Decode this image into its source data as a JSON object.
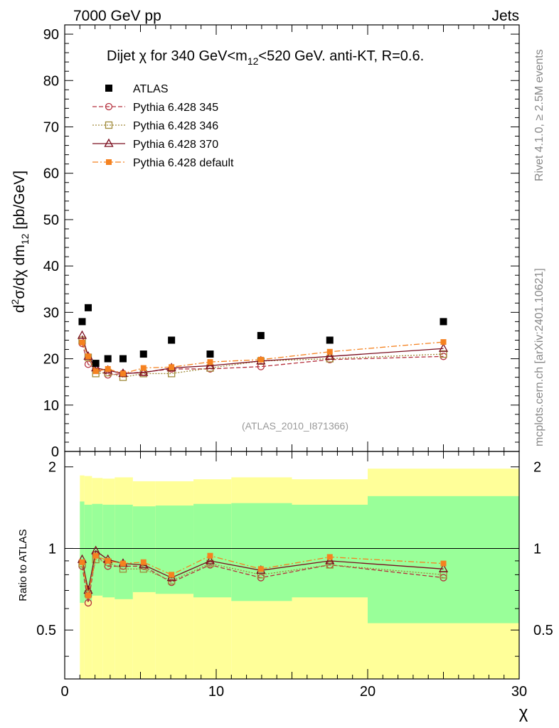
{
  "header": {
    "left": "7000 GeV pp",
    "right": "Jets"
  },
  "side_labels": {
    "rivet": "Rivet 4.1.0, ≥ 2.5M events",
    "mcplots": "mcplots.cern.ch [arXiv:2401.10621]"
  },
  "colors": {
    "atlas": "#000000",
    "p345": "#b5303d",
    "p346": "#a08a3a",
    "p370": "#7a0d1e",
    "pdefault": "#f58220",
    "band_yellow": "#ffff99",
    "band_green": "#99ff99"
  },
  "chart_data": [
    {
      "type": "scatter",
      "title_parts": {
        "prefix": "Dijet χ for 340 GeV<m",
        "sub": "12",
        "suffix": "<520 GeV.  anti-KT, R=0.6."
      },
      "ylabel_parts": {
        "d": "d",
        "sup": "2",
        "mid": "σ/dχ dm",
        "sub": "12",
        "unit": " [pb/GeV]"
      },
      "xlabel": "χ",
      "xlim": [
        0,
        30
      ],
      "ylim": [
        0,
        92
      ],
      "y_ticks": [
        0,
        10,
        20,
        30,
        40,
        50,
        60,
        70,
        80,
        90
      ],
      "analysis_id": "(ATLAS_2010_I871366)",
      "legend": [
        "ATLAS",
        "Pythia 6.428 345",
        "Pythia 6.428 346",
        "Pythia 6.428 370",
        "Pythia 6.428 default"
      ],
      "x": [
        1.15,
        1.55,
        2.05,
        2.85,
        3.85,
        5.2,
        7.05,
        9.6,
        12.95,
        17.5,
        25
      ],
      "series": [
        {
          "name": "ATLAS",
          "values": [
            28,
            31,
            19,
            20,
            20,
            21,
            24,
            21,
            25,
            24,
            28
          ]
        },
        {
          "name": "Pythia 6.428 345",
          "values": [
            23.3,
            18.8,
            17.8,
            16.5,
            16.8,
            17.1,
            17.8,
            17.8,
            18.3,
            19.8,
            20.5
          ]
        },
        {
          "name": "Pythia 6.428 346",
          "values": [
            24.0,
            20.3,
            16.8,
            17.0,
            16.0,
            16.8,
            16.8,
            18.0,
            19.5,
            20.0,
            21.0
          ]
        },
        {
          "name": "Pythia 6.428 370",
          "values": [
            25.0,
            20.5,
            18.0,
            17.5,
            16.8,
            17.0,
            18.0,
            18.5,
            19.5,
            20.5,
            22.2
          ]
        },
        {
          "name": "Pythia 6.428 default",
          "values": [
            23.5,
            20.5,
            17.3,
            17.8,
            16.8,
            18.0,
            18.2,
            19.3,
            19.8,
            21.5,
            23.6
          ]
        }
      ]
    },
    {
      "type": "line",
      "ylabel": "Ratio to ATLAS",
      "xlabel": "χ",
      "xlim": [
        0,
        30
      ],
      "ylim": [
        0.33,
        2.28
      ],
      "y_ticks": [
        0.5,
        1,
        2
      ],
      "x_ticks": [
        0,
        10,
        20,
        30
      ],
      "band_edges": [
        1.0,
        1.3,
        1.8,
        2.5,
        3.3,
        4.5,
        6.0,
        8.5,
        11.0,
        15.0,
        20.0,
        30.0
      ],
      "band_yellow_hi": [
        1.86,
        1.85,
        1.82,
        1.81,
        1.83,
        1.77,
        1.77,
        1.8,
        1.83,
        1.8,
        1.97
      ],
      "band_yellow_lo": [
        0.33,
        0.33,
        0.33,
        0.33,
        0.33,
        0.33,
        0.33,
        0.33,
        0.33,
        0.33,
        0.33
      ],
      "band_green_hi": [
        1.49,
        1.45,
        1.46,
        1.45,
        1.45,
        1.43,
        1.44,
        1.46,
        1.47,
        1.45,
        1.56
      ],
      "band_green_lo": [
        0.63,
        0.64,
        0.67,
        0.66,
        0.65,
        0.69,
        0.68,
        0.66,
        0.64,
        0.66,
        0.53
      ],
      "x": [
        1.15,
        1.55,
        2.05,
        2.85,
        3.85,
        5.2,
        7.05,
        9.6,
        12.95,
        17.5,
        25
      ],
      "series": [
        {
          "name": "Pythia 6.428 345",
          "values": [
            0.86,
            0.63,
            0.95,
            0.86,
            0.86,
            0.86,
            0.75,
            0.87,
            0.78,
            0.87,
            0.78
          ]
        },
        {
          "name": "Pythia 6.428 346",
          "values": [
            0.88,
            0.68,
            0.91,
            0.89,
            0.84,
            0.84,
            0.76,
            0.88,
            0.8,
            0.87,
            0.8
          ]
        },
        {
          "name": "Pythia 6.428 370",
          "values": [
            0.91,
            0.7,
            0.98,
            0.91,
            0.88,
            0.87,
            0.78,
            0.9,
            0.83,
            0.9,
            0.84
          ]
        },
        {
          "name": "Pythia 6.428 default",
          "values": [
            0.89,
            0.67,
            0.94,
            0.9,
            0.88,
            0.89,
            0.8,
            0.94,
            0.84,
            0.93,
            0.88
          ]
        }
      ]
    }
  ]
}
